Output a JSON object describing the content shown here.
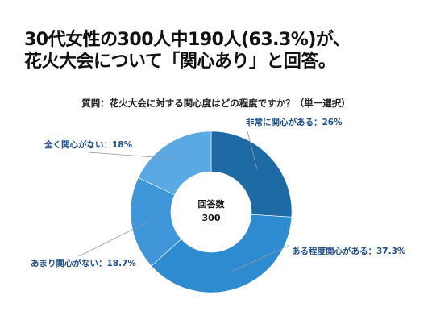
{
  "headline": {
    "line1": "30代女性の300人中190人(63.3%)が、",
    "line2": "花火大会について「関心あり」と回答。"
  },
  "chart_data": {
    "type": "pie",
    "title": "質問：花火大会に対する関心度はどの程度ですか？（単一選択）",
    "center_label": "回答数",
    "center_value": "300",
    "slices": [
      {
        "label": "非常に関心がある",
        "value": 26,
        "display": "非常に関心がある：26%",
        "color": "#1d6aa5"
      },
      {
        "label": "ある程度関心がある",
        "value": 37.3,
        "display": "ある程度関心がある：37.3%",
        "color": "#2f8bd0"
      },
      {
        "label": "あまり関心がない",
        "value": 18.7,
        "display": "あまり関心がない：18.7%",
        "color": "#3f96d8"
      },
      {
        "label": "全く関心がない",
        "value": 18,
        "display": "全く関心がない：18%",
        "color": "#5aa9e3"
      }
    ]
  }
}
